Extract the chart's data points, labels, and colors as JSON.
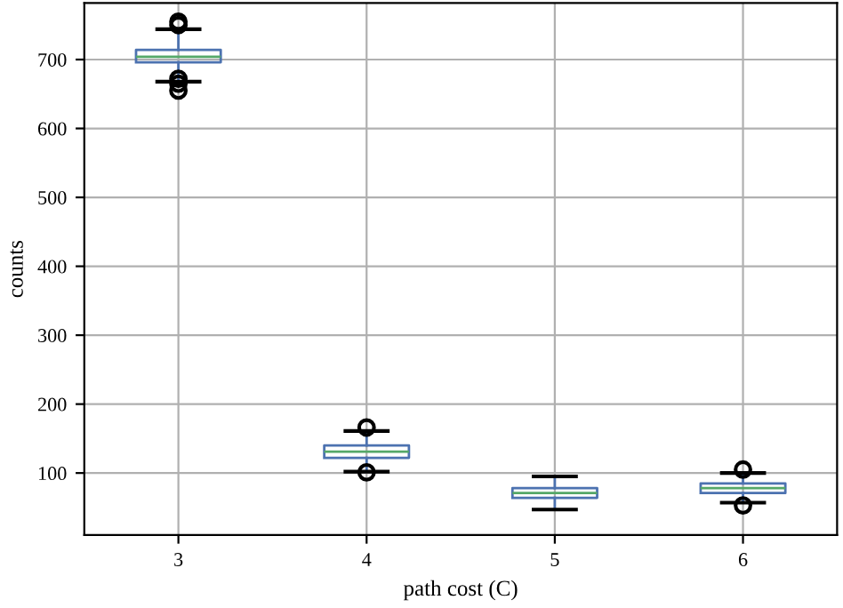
{
  "chart_data": {
    "type": "box",
    "categories": [
      "3",
      "4",
      "5",
      "6"
    ],
    "boxes": [
      {
        "low": 668,
        "q1": 696,
        "median": 704,
        "q3": 714,
        "high": 744,
        "outliers": [
          755,
          750,
          672,
          665,
          655
        ]
      },
      {
        "low": 102,
        "q1": 122,
        "median": 131,
        "q3": 140,
        "high": 161,
        "outliers": [
          166,
          101
        ]
      },
      {
        "low": 47,
        "q1": 64,
        "median": 71,
        "q3": 78,
        "high": 95
      },
      {
        "low": 57,
        "q1": 71,
        "median": 78,
        "q3": 85,
        "high": 100,
        "outliers": [
          105,
          53
        ]
      }
    ],
    "color": "#4c72b0",
    "xlabel": "path cost (C)",
    "ylabel": "counts",
    "ylim": [
      10,
      782
    ],
    "yticks": [
      100,
      200,
      300,
      400,
      500,
      600,
      700
    ],
    "grid": true
  }
}
